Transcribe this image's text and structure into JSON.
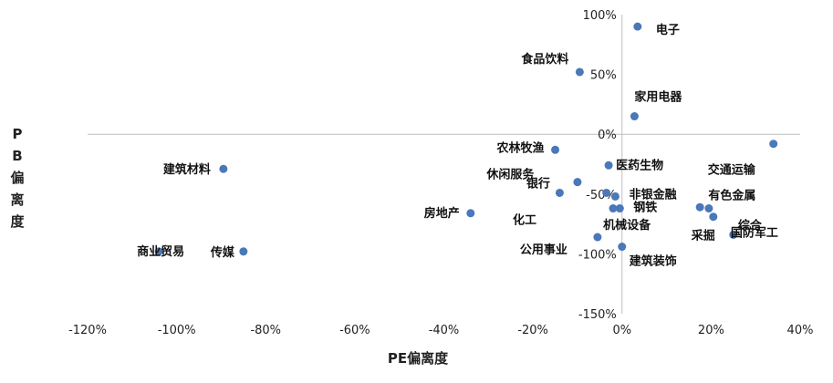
{
  "chart_data": {
    "type": "scatter",
    "title": "",
    "xlabel": "PE偏离度",
    "ylabel": "PB偏离度",
    "xlim": [
      -120,
      40
    ],
    "ylim": [
      -150,
      100
    ],
    "x_ticks": [
      "-120%",
      "-100%",
      "-80%",
      "-60%",
      "-40%",
      "-20%",
      "0%",
      "20%",
      "40%"
    ],
    "y_ticks": [
      "100%",
      "50%",
      "0%",
      "-50%",
      "-100%",
      "-150%"
    ],
    "grid": false,
    "marker_color": "#4a78b8",
    "axis_color": "#bfbfbf",
    "points": [
      {
        "label": "电子",
        "x": 3.5,
        "y": 90
      },
      {
        "label": "食品饮料",
        "x": -9.5,
        "y": 52
      },
      {
        "label": "家用电器",
        "x": 2.8,
        "y": 15
      },
      {
        "label": "交通运输",
        "x": 34,
        "y": -8
      },
      {
        "label": "农林牧渔",
        "x": -15,
        "y": -13
      },
      {
        "label": "医药生物",
        "x": -3,
        "y": -26
      },
      {
        "label": "银行",
        "x": -10,
        "y": -40
      },
      {
        "label": "非银金融",
        "x": -3.5,
        "y": -49
      },
      {
        "label": "休闲服务",
        "x": -14,
        "y": -49
      },
      {
        "label": "有色金属",
        "x": -1.5,
        "y": -52
      },
      {
        "label": "化工",
        "x": -2,
        "y": -62
      },
      {
        "label": "钢铁",
        "x": -0.5,
        "y": -62
      },
      {
        "label": "机械设备",
        "x": 17.5,
        "y": -61
      },
      {
        "label": "国防军工",
        "x": 19.5,
        "y": -62
      },
      {
        "label": "综合",
        "x": 20.5,
        "y": -69
      },
      {
        "label": "采掘",
        "x": 25,
        "y": -84
      },
      {
        "label": "公用事业",
        "x": -5.5,
        "y": -86
      },
      {
        "label": "建筑装饰",
        "x": 0,
        "y": -94
      },
      {
        "label": "房地产",
        "x": -34,
        "y": -66
      },
      {
        "label": "建筑材料",
        "x": -89.5,
        "y": -29
      },
      {
        "label": "商业贸易",
        "x": -104,
        "y": -98
      },
      {
        "label": "传媒",
        "x": -85,
        "y": -98
      }
    ]
  }
}
